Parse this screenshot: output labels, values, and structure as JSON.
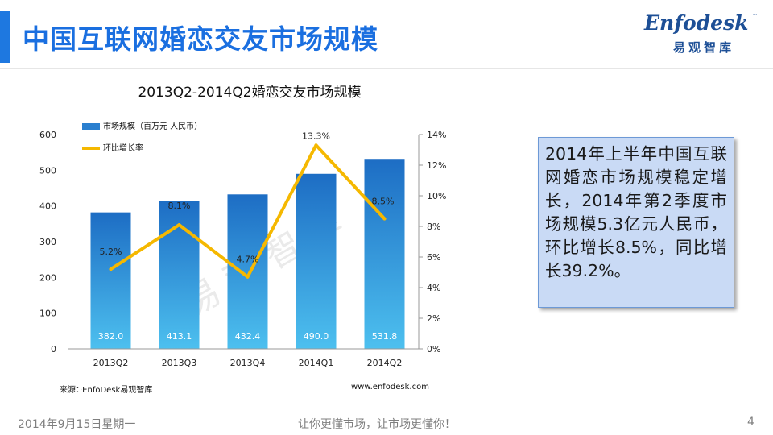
{
  "header": {
    "title": "中国互联网婚恋交友市场规模",
    "logo_text": "Enfodesk",
    "logo_tm": "™",
    "logo_sub": "易观智库"
  },
  "chart_data": {
    "type": "bar",
    "title": "2013Q2-2014Q2婚恋交友市场规模",
    "categories": [
      "2013Q2",
      "2013Q3",
      "2013Q4",
      "2014Q1",
      "2014Q2"
    ],
    "series": [
      {
        "name": "市场规模（百万元 人民币）",
        "type": "bar",
        "axis": "left",
        "values": [
          382.0,
          413.1,
          432.4,
          490.0,
          531.8
        ],
        "labels": [
          "382.0",
          "413.1",
          "432.4",
          "490.0",
          "531.8"
        ]
      },
      {
        "name": "环比增长率",
        "type": "line",
        "axis": "right",
        "values": [
          5.2,
          8.1,
          4.7,
          13.3,
          8.5
        ],
        "labels": [
          "5.2%",
          "8.1%",
          "4.7%",
          "13.3%",
          "8.5%"
        ]
      }
    ],
    "y_left": {
      "min": 0,
      "max": 600,
      "ticks": [
        "0",
        "100",
        "200",
        "300",
        "400",
        "500",
        "600"
      ]
    },
    "y_right": {
      "min": 0,
      "max": 14,
      "ticks": [
        "0%",
        "2%",
        "4%",
        "6%",
        "8%",
        "10%",
        "12%",
        "14%"
      ]
    },
    "watermark": "易观智库",
    "colors": {
      "bar_top": "#1d6dc4",
      "bar_bottom": "#4dc0ef",
      "line": "#f5b800"
    }
  },
  "source": {
    "label": "来源：·EnfoDesk易观智库",
    "website": "www.enfodesk.com"
  },
  "callout": {
    "text": "2014年上半年中国互联网婚恋市场规模稳定增长，2014年第2季度市场规模5.3亿元人民币，环比增长8.5%，同比增长39.2%。"
  },
  "footer": {
    "date": "2014年9月15日星期一",
    "slogan": "让你更懂市场，让市场更懂你！",
    "page": "4"
  }
}
